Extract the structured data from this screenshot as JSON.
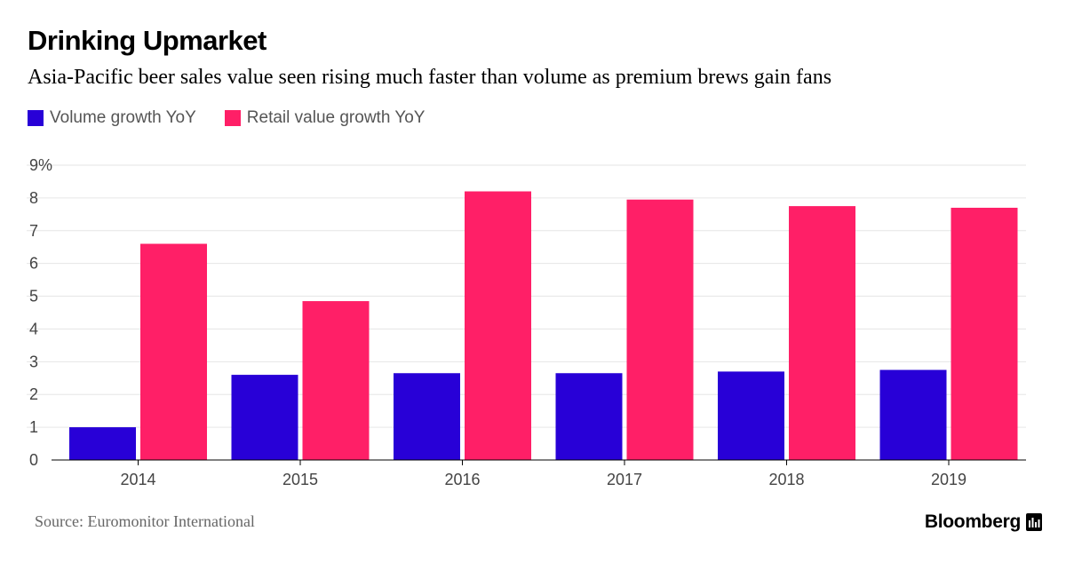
{
  "header": {
    "title": "Drinking Upmarket",
    "subtitle": "Asia-Pacific beer sales value seen rising much faster than volume as premium brews gain fans"
  },
  "footer": {
    "source": "Source: Euromonitor International",
    "brand": "Bloomberg",
    "brand_icon": "bloomberg-terminal-icon"
  },
  "colors": {
    "volume": "#2800d7",
    "value": "#ff1f67",
    "grid": "#e6e6e6",
    "axis": "#000000",
    "tick_text": "#444444"
  },
  "chart_data": {
    "type": "bar",
    "title": "Drinking Upmarket",
    "subtitle": "Asia-Pacific beer sales value seen rising much faster than volume as premium brews gain fans",
    "xlabel": "",
    "ylabel": "",
    "categories": [
      "2014",
      "2015",
      "2016",
      "2017",
      "2018",
      "2019"
    ],
    "series": [
      {
        "name": "Volume growth YoY",
        "values": [
          1.0,
          2.6,
          2.65,
          2.65,
          2.7,
          2.75
        ]
      },
      {
        "name": "Retail value growth YoY",
        "values": [
          6.6,
          4.85,
          8.2,
          7.95,
          7.75,
          7.7
        ]
      }
    ],
    "ylim": [
      0,
      9
    ],
    "yticks": [
      "0",
      "1",
      "2",
      "3",
      "4",
      "5",
      "6",
      "7",
      "8",
      "9%"
    ],
    "grid": true,
    "legend_position": "top-left"
  }
}
